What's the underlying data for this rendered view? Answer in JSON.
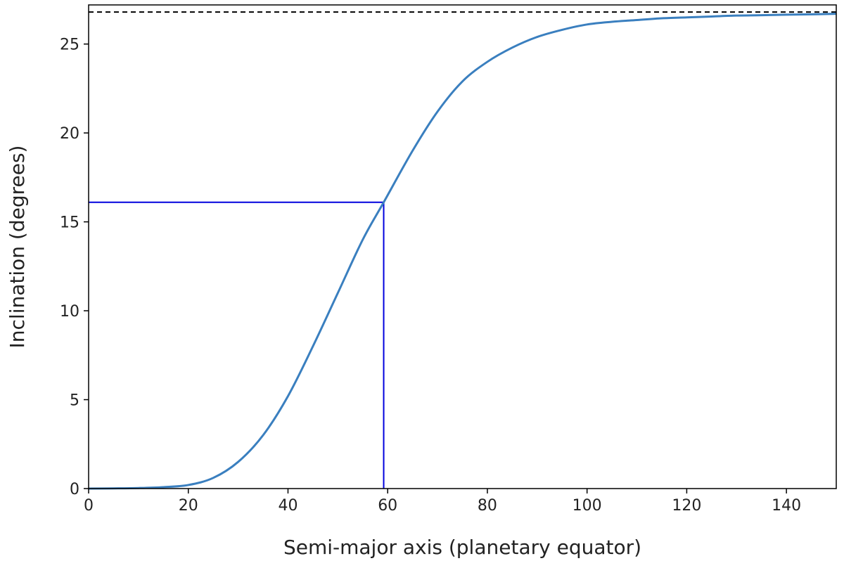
{
  "chart_data": {
    "type": "line",
    "title": "",
    "xlabel": "Semi-major axis (planetary equator)",
    "ylabel": "Inclination (degrees)",
    "xlim": [
      0,
      150
    ],
    "ylim": [
      0,
      27.2
    ],
    "xticks": [
      0,
      20,
      40,
      60,
      80,
      100,
      120,
      140
    ],
    "yticks": [
      0,
      5,
      10,
      15,
      20,
      25
    ],
    "grid": false,
    "legend": "none",
    "series": [
      {
        "color": "#3a7fbf",
        "style": "solid",
        "x": [
          0,
          5,
          10,
          15,
          20,
          25,
          30,
          35,
          40,
          45,
          50,
          55,
          59.2,
          65,
          70,
          75,
          80,
          85,
          90,
          95,
          100,
          105,
          110,
          115,
          120,
          125,
          130,
          135,
          140,
          145,
          150
        ],
        "y": [
          0.0,
          0.01,
          0.03,
          0.08,
          0.2,
          0.6,
          1.5,
          3.0,
          5.2,
          8.0,
          11.0,
          14.0,
          16.1,
          19.0,
          21.2,
          22.9,
          24.0,
          24.8,
          25.4,
          25.8,
          26.1,
          26.25,
          26.35,
          26.45,
          26.5,
          26.55,
          26.6,
          26.62,
          26.65,
          26.67,
          26.7
        ]
      }
    ],
    "reference_lines": [
      {
        "orientation": "horizontal",
        "value": 26.8,
        "color": "#000000",
        "style": "dashed",
        "from": 0,
        "to": 150
      },
      {
        "orientation": "horizontal",
        "value": 16.1,
        "color": "#0000dd",
        "style": "solid",
        "from": 0,
        "to": 59.2
      },
      {
        "orientation": "vertical",
        "value": 59.2,
        "color": "#0000dd",
        "style": "solid",
        "from": 0,
        "to": 16.1
      }
    ]
  }
}
